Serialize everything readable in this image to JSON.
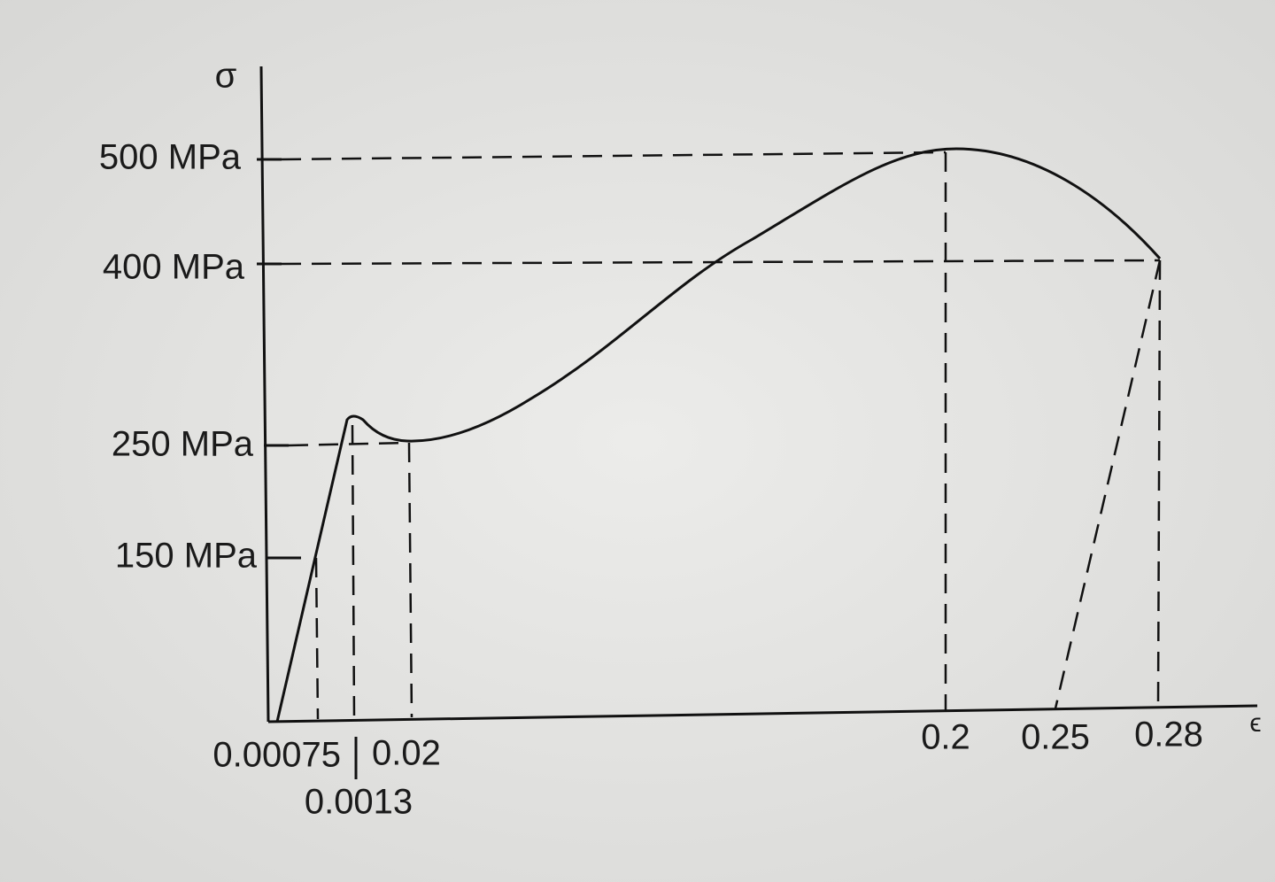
{
  "diagram": {
    "y_axis_label": "σ",
    "x_axis_label": "ϵ",
    "y_labels": [
      "500 MPa",
      "400 MPa",
      "250 MPa",
      "150 MPa"
    ],
    "x_labels": [
      "0.00075",
      "0.02",
      "0.0013",
      "0.2",
      "0.25",
      "0.28"
    ]
  }
}
